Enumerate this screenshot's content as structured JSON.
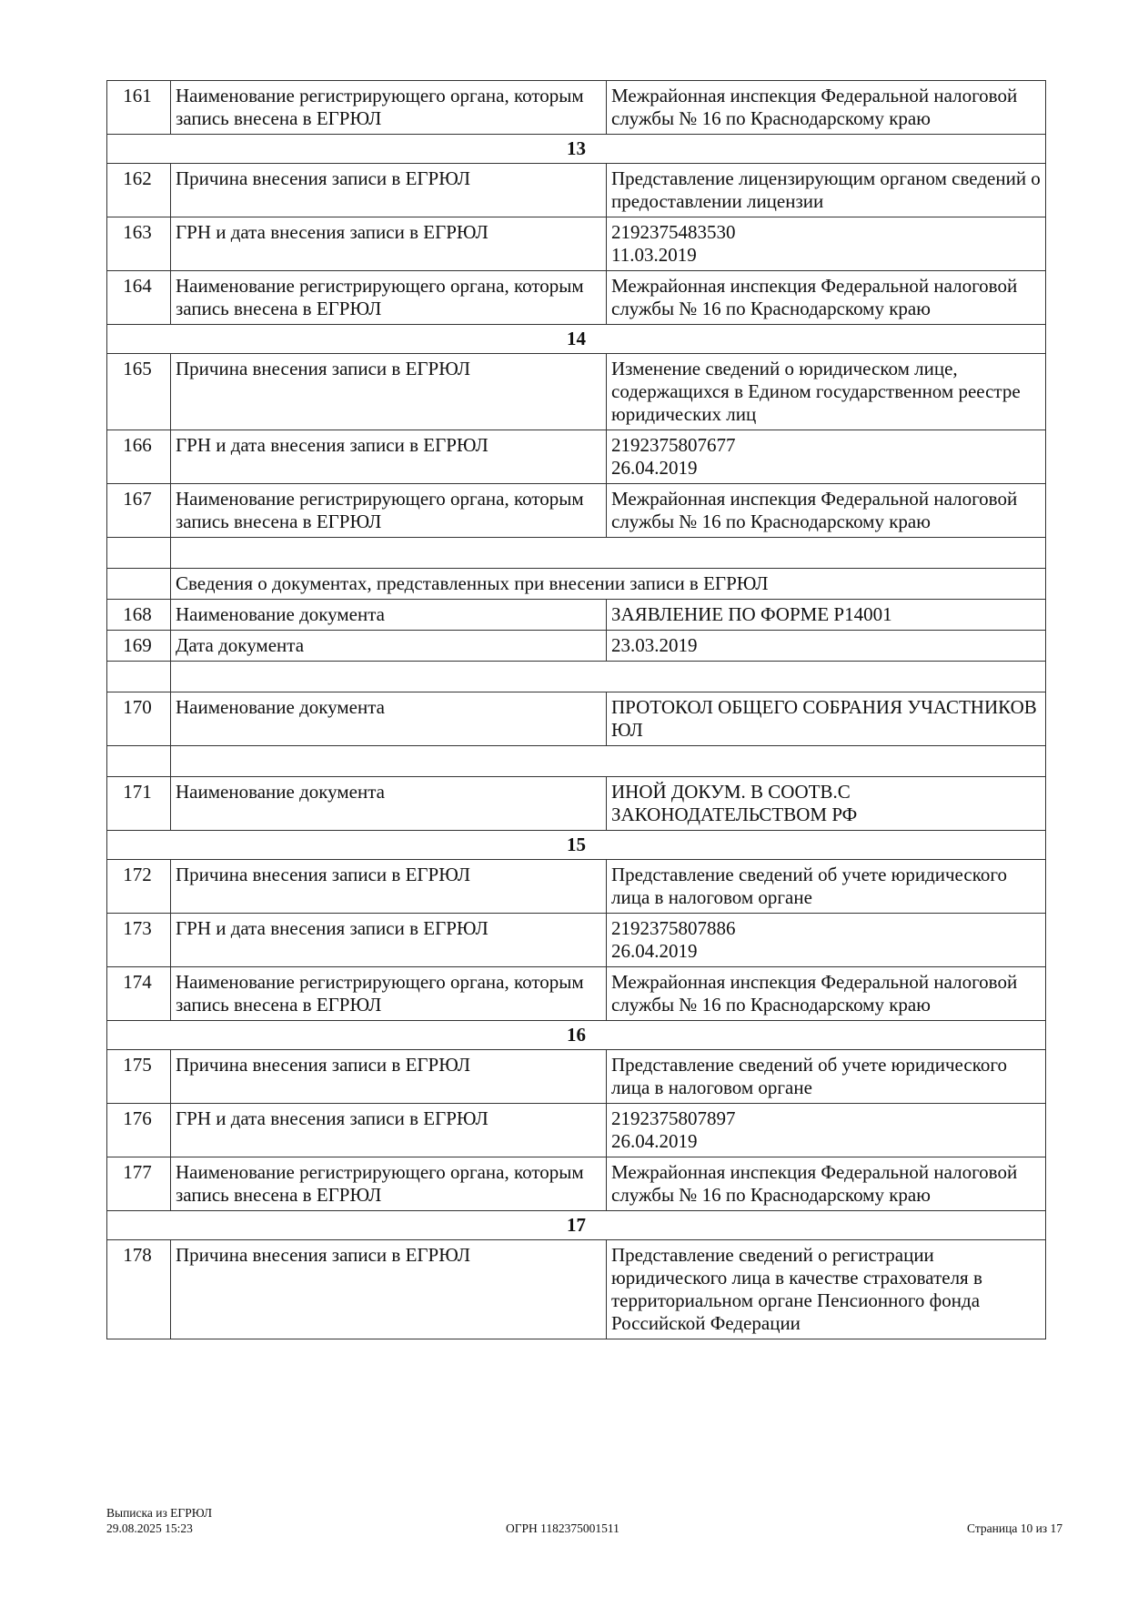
{
  "rows": [
    {
      "type": "row",
      "num": "161",
      "field": "Наименование регистрирующего органа, которым запись внесена в ЕГРЮЛ",
      "value": "Межрайонная инспекция Федеральной налоговой службы № 16 по Краснодарскому краю"
    },
    {
      "type": "section",
      "label": "13"
    },
    {
      "type": "row",
      "num": "162",
      "field": "Причина внесения записи в ЕГРЮЛ",
      "value": "Представление лицензирующим органом сведений о предоставлении лицензии"
    },
    {
      "type": "row",
      "num": "163",
      "field": "ГРН и дата внесения записи в ЕГРЮЛ",
      "value": "2192375483530\n11.03.2019"
    },
    {
      "type": "row",
      "num": "164",
      "field": "Наименование регистрирующего органа, которым запись внесена в ЕГРЮЛ",
      "value": "Межрайонная инспекция Федеральной налоговой службы № 16 по Краснодарскому краю"
    },
    {
      "type": "section",
      "label": "14"
    },
    {
      "type": "row",
      "num": "165",
      "field": "Причина внесения записи в ЕГРЮЛ",
      "value": "Изменение сведений о юридическом лице, содержащихся в Едином государственном реестре юридических лиц"
    },
    {
      "type": "row",
      "num": "166",
      "field": "ГРН и дата внесения записи в ЕГРЮЛ",
      "value": "2192375807677\n26.04.2019"
    },
    {
      "type": "row",
      "num": "167",
      "field": "Наименование регистрирующего органа, которым запись внесена в ЕГРЮЛ",
      "value": "Межрайонная инспекция Федеральной налоговой службы № 16 по Краснодарскому краю"
    },
    {
      "type": "empty"
    },
    {
      "type": "header",
      "label": "Сведения о документах, представленных при внесении записи в ЕГРЮЛ"
    },
    {
      "type": "row",
      "num": "168",
      "field": "Наименование документа",
      "value": "ЗАЯВЛЕНИЕ ПО ФОРМЕ Р14001"
    },
    {
      "type": "row",
      "num": "169",
      "field": "Дата документа",
      "value": "23.03.2019"
    },
    {
      "type": "empty"
    },
    {
      "type": "row",
      "num": "170",
      "field": "Наименование документа",
      "value": "ПРОТОКОЛ ОБЩЕГО СОБРАНИЯ УЧАСТНИКОВ ЮЛ"
    },
    {
      "type": "empty"
    },
    {
      "type": "row",
      "num": "171",
      "field": "Наименование документа",
      "value": "ИНОЙ ДОКУМ. В СООТВ.С ЗАКОНОДАТЕЛЬСТВОМ РФ"
    },
    {
      "type": "section",
      "label": "15"
    },
    {
      "type": "row",
      "num": "172",
      "field": "Причина внесения записи в ЕГРЮЛ",
      "value": "Представление сведений об учете юридического лица в налоговом органе"
    },
    {
      "type": "row",
      "num": "173",
      "field": "ГРН и дата внесения записи в ЕГРЮЛ",
      "value": "2192375807886\n26.04.2019"
    },
    {
      "type": "row",
      "num": "174",
      "field": "Наименование регистрирующего органа, которым запись внесена в ЕГРЮЛ",
      "value": "Межрайонная инспекция Федеральной налоговой службы № 16 по Краснодарскому краю"
    },
    {
      "type": "section",
      "label": "16"
    },
    {
      "type": "row",
      "num": "175",
      "field": "Причина внесения записи в ЕГРЮЛ",
      "value": "Представление сведений об учете юридического лица в налоговом органе"
    },
    {
      "type": "row",
      "num": "176",
      "field": "ГРН и дата внесения записи в ЕГРЮЛ",
      "value": "2192375807897\n26.04.2019"
    },
    {
      "type": "row",
      "num": "177",
      "field": "Наименование регистрирующего органа, которым запись внесена в ЕГРЮЛ",
      "value": "Межрайонная инспекция Федеральной налоговой службы № 16 по Краснодарскому краю"
    },
    {
      "type": "section",
      "label": "17"
    },
    {
      "type": "row",
      "num": "178",
      "field": "Причина внесения записи в ЕГРЮЛ",
      "value": "Представление сведений о регистрации юридического лица в качестве страхователя в территориальном органе Пенсионного фонда Российской Федерации"
    }
  ],
  "footer": {
    "title": "Выписка из ЕГРЮЛ",
    "datetime": "29.08.2025 15:23",
    "ogrn": "ОГРН 1182375001511",
    "page": "Страница 10 из 17"
  }
}
